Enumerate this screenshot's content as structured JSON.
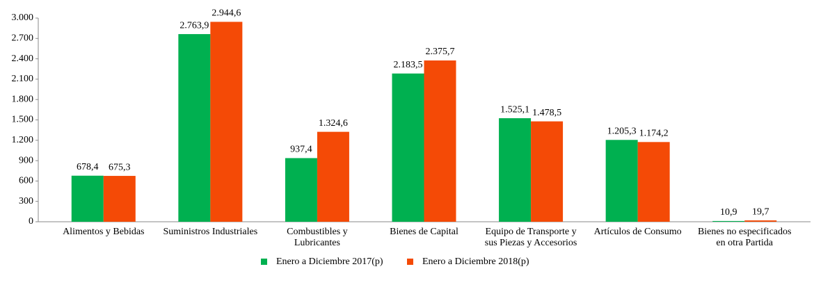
{
  "chart_data": {
    "type": "bar",
    "categories": [
      "Alimentos y Bebidas",
      "Suministros Industriales",
      "Combustibles y Lubricantes",
      "Bienes de Capital",
      "Equipo de Transporte y sus Piezas y Accesorios",
      "Artículos de Consumo",
      "Bienes no especificados en otra Partida"
    ],
    "series": [
      {
        "name": "Enero a Diciembre 2017(p)",
        "color": "#00b050",
        "values": [
          678.4,
          2763.9,
          937.4,
          2183.5,
          1525.1,
          1205.3,
          10.9
        ],
        "value_labels": [
          "678,4",
          "2.763,9",
          "937,4",
          "2.183,5",
          "1.525,1",
          "1.205,3",
          "10,9"
        ]
      },
      {
        "name": "Enero a Diciembre 2018(p)",
        "color": "#f44a06",
        "values": [
          675.3,
          2944.6,
          1324.6,
          2375.7,
          1478.5,
          1174.2,
          19.7
        ],
        "value_labels": [
          "675,3",
          "2.944,6",
          "1.324,6",
          "2.375,7",
          "1.478,5",
          "1.174,2",
          "19,7"
        ]
      }
    ],
    "ylim": [
      0,
      3000
    ],
    "yticks": [
      0,
      300,
      600,
      900,
      {
        "value": 1200,
        "label": "1.200"
      },
      {
        "value": 1500,
        "label": "1.500"
      },
      {
        "value": 1800,
        "label": "1.800"
      },
      {
        "value": 2100,
        "label": "2.100"
      },
      {
        "value": 2400,
        "label": "2.400"
      },
      {
        "value": 2700,
        "label": "2.700"
      },
      {
        "value": 3000,
        "label": "3.000"
      }
    ],
    "legend": "bottom"
  }
}
